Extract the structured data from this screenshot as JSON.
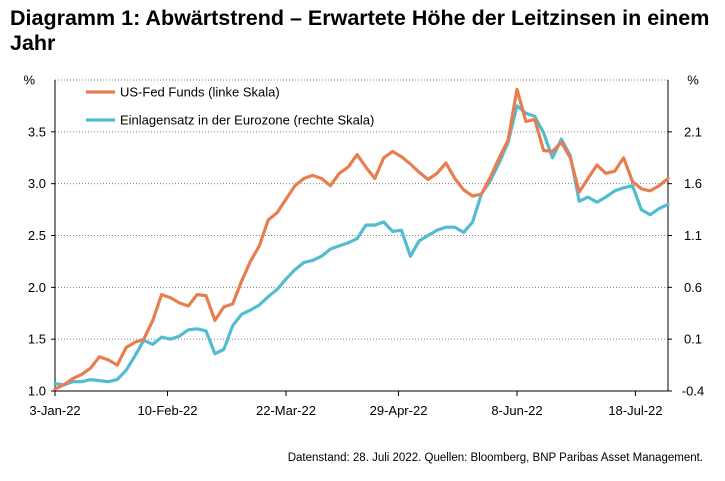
{
  "title": "Diagramm 1: Abwärtstrend – Erwartete Höhe der Leitzinsen in einem Jahr",
  "source": "Datenstand: 28. Juli 2022. Quellen: Bloomberg, BNP Paribas Asset Management.",
  "colors": {
    "fed": "#E87E4F",
    "ecb": "#53BCD0",
    "grid": "#808080",
    "axis": "#000000"
  },
  "chart_data": {
    "type": "line",
    "title": "Diagramm 1: Abwärtstrend – Erwartete Höhe der Leitzinsen in einem Jahr",
    "xlabel": "",
    "ylabel_left": "%",
    "ylabel_right": "%",
    "ylim_left": [
      1.0,
      4.0
    ],
    "ylim_right": [
      -0.4,
      2.6
    ],
    "yticks_left": [
      "1.0",
      "1.5",
      "2.0",
      "2.5",
      "3.0",
      "3.5"
    ],
    "yticks_right": [
      "-0.4",
      "0.1",
      "0.6",
      "1.1",
      "1.6",
      "2.1"
    ],
    "x_start": "2022-01-03",
    "x_end": "2022-07-28",
    "x_ticks": [
      {
        "label": "3-Jan-22",
        "day": 0
      },
      {
        "label": "10-Feb-22",
        "day": 38
      },
      {
        "label": "22-Mar-22",
        "day": 78
      },
      {
        "label": "29-Apr-22",
        "day": 116
      },
      {
        "label": "8-Jun-22",
        "day": 156
      },
      {
        "label": "18-Jul-22",
        "day": 196
      }
    ],
    "legend_position": "top-left",
    "series": [
      {
        "name": "US-Fed Funds (linke Skala)",
        "axis": "left",
        "day": [
          0,
          3,
          6,
          9,
          12,
          15,
          18,
          21,
          24,
          27,
          30,
          33,
          36,
          39,
          42,
          45,
          48,
          51,
          54,
          57,
          60,
          63,
          66,
          69,
          72,
          75,
          78,
          81,
          84,
          87,
          90,
          93,
          96,
          99,
          102,
          105,
          108,
          111,
          114,
          117,
          120,
          123,
          126,
          129,
          132,
          135,
          138,
          141,
          144,
          147,
          150,
          153,
          156,
          159,
          162,
          165,
          168,
          171,
          174,
          177,
          180,
          183,
          186,
          189,
          192,
          195,
          198,
          201,
          204,
          207
        ],
        "values": [
          1.02,
          1.06,
          1.12,
          1.16,
          1.22,
          1.33,
          1.3,
          1.25,
          1.42,
          1.47,
          1.5,
          1.68,
          1.93,
          1.9,
          1.85,
          1.82,
          1.93,
          1.92,
          1.68,
          1.81,
          1.84,
          2.06,
          2.25,
          2.4,
          2.65,
          2.72,
          2.85,
          2.98,
          3.05,
          3.08,
          3.05,
          2.98,
          3.1,
          3.16,
          3.28,
          3.16,
          3.05,
          3.25,
          3.31,
          3.26,
          3.19,
          3.11,
          3.04,
          3.1,
          3.2,
          3.05,
          2.94,
          2.88,
          2.9,
          3.06,
          3.25,
          3.42,
          3.91,
          3.6,
          3.62,
          3.32,
          3.31,
          3.4,
          3.25,
          2.92,
          3.05,
          3.18,
          3.1,
          3.12,
          3.25,
          3.02,
          2.95,
          2.93,
          2.98,
          3.05
        ]
      },
      {
        "name": "Einlagensatz in der Eurozone (rechte Skala)",
        "axis": "right",
        "day": [
          0,
          3,
          6,
          9,
          12,
          15,
          18,
          21,
          24,
          27,
          30,
          33,
          36,
          39,
          42,
          45,
          48,
          51,
          54,
          57,
          60,
          63,
          66,
          69,
          72,
          75,
          78,
          81,
          84,
          87,
          90,
          93,
          96,
          99,
          102,
          105,
          108,
          111,
          114,
          117,
          120,
          123,
          126,
          129,
          132,
          135,
          138,
          141,
          144,
          147,
          150,
          153,
          156,
          159,
          162,
          165,
          168,
          171,
          174,
          177,
          180,
          183,
          186,
          189,
          192,
          195,
          198,
          201,
          204,
          207
        ],
        "values": [
          -0.33,
          -0.34,
          -0.31,
          -0.31,
          -0.29,
          -0.3,
          -0.31,
          -0.29,
          -0.2,
          -0.06,
          0.09,
          0.05,
          0.12,
          0.1,
          0.13,
          0.19,
          0.2,
          0.18,
          -0.04,
          0.0,
          0.23,
          0.34,
          0.38,
          0.43,
          0.51,
          0.58,
          0.68,
          0.77,
          0.84,
          0.86,
          0.9,
          0.97,
          1.0,
          1.03,
          1.07,
          1.2,
          1.2,
          1.23,
          1.14,
          1.15,
          0.9,
          1.05,
          1.1,
          1.15,
          1.18,
          1.18,
          1.13,
          1.23,
          1.5,
          1.63,
          1.8,
          2.0,
          2.35,
          2.28,
          2.25,
          2.09,
          1.85,
          2.03,
          1.87,
          1.43,
          1.47,
          1.42,
          1.47,
          1.53,
          1.56,
          1.58,
          1.35,
          1.3,
          1.36,
          1.4
        ]
      }
    ]
  }
}
